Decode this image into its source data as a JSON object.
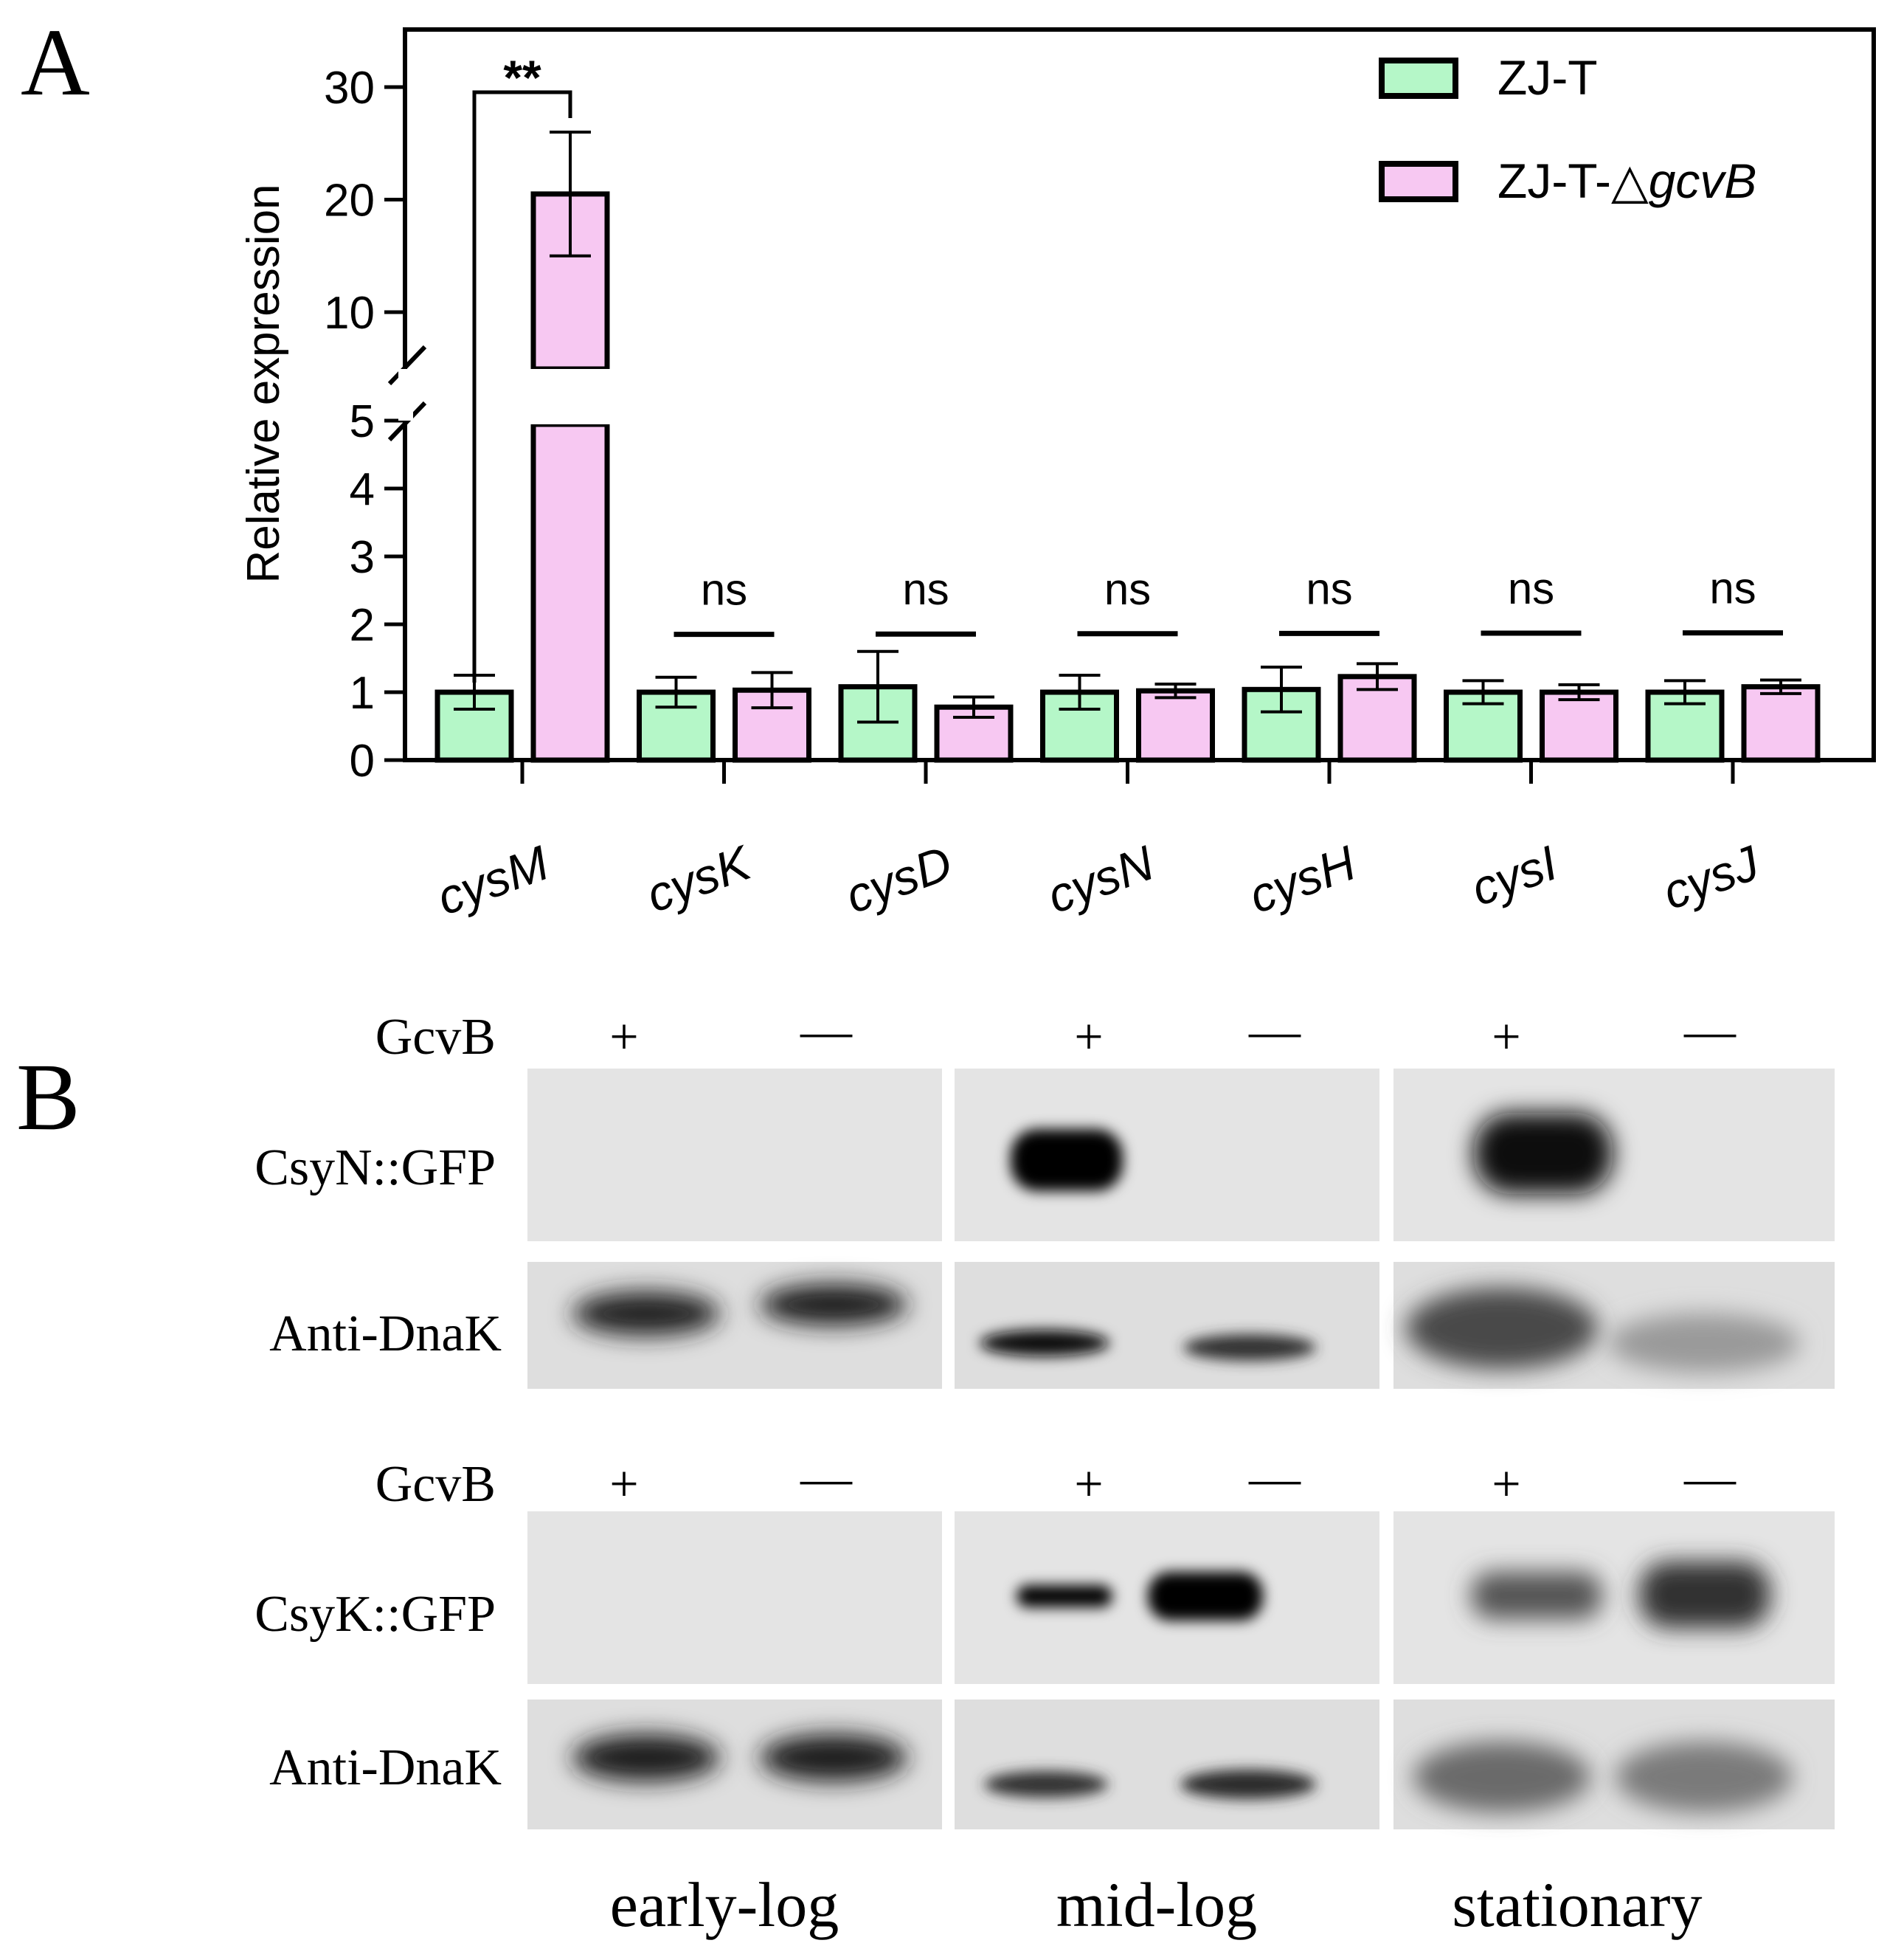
{
  "panel_a": {
    "label": "A"
  },
  "panel_b": {
    "label": "B"
  },
  "chart_data": {
    "type": "bar",
    "ylabel": "Relative expression",
    "y_axis": {
      "broken": true,
      "lower_range": [
        0,
        5
      ],
      "upper_range": [
        5,
        30
      ],
      "lower_ticks": [
        "0",
        "1",
        "2",
        "3",
        "4",
        "5"
      ],
      "upper_ticks": [
        "10",
        "20",
        "30"
      ]
    },
    "categories": [
      "cysM",
      "cysK",
      "cysD",
      "cysN",
      "cysH",
      "cysI",
      "cysJ"
    ],
    "series": [
      {
        "name": "ZJ-T",
        "color": "#b5f7c8",
        "values": [
          1.0,
          1.0,
          1.08,
          1.0,
          1.04,
          1.0,
          1.0
        ],
        "errors": [
          0.25,
          0.22,
          0.52,
          0.25,
          0.33,
          0.17,
          0.17
        ]
      },
      {
        "name": "ZJ-T-△gcvB",
        "name_prefix": "ZJ-T-△",
        "name_italic": "gcvB",
        "color": "#f7c8f2",
        "values": [
          20.5,
          1.03,
          0.78,
          1.02,
          1.23,
          1.0,
          1.08
        ],
        "errors": [
          5.5,
          0.26,
          0.15,
          0.1,
          0.19,
          0.11,
          0.1
        ]
      }
    ],
    "significance": [
      "**",
      "ns",
      "ns",
      "ns",
      "ns",
      "ns",
      "ns"
    ],
    "legend_position": "top-right"
  },
  "blot": {
    "row_labels": {
      "gcvb": "GcvB",
      "csyn": "CsyN::GFP",
      "csyk": "CsyK::GFP",
      "dnak": "Anti-DnaK"
    },
    "signs": [
      "+",
      "—",
      "+",
      "—",
      "+",
      "—"
    ],
    "phases": [
      "early-log",
      "mid-log",
      "stationary"
    ]
  }
}
